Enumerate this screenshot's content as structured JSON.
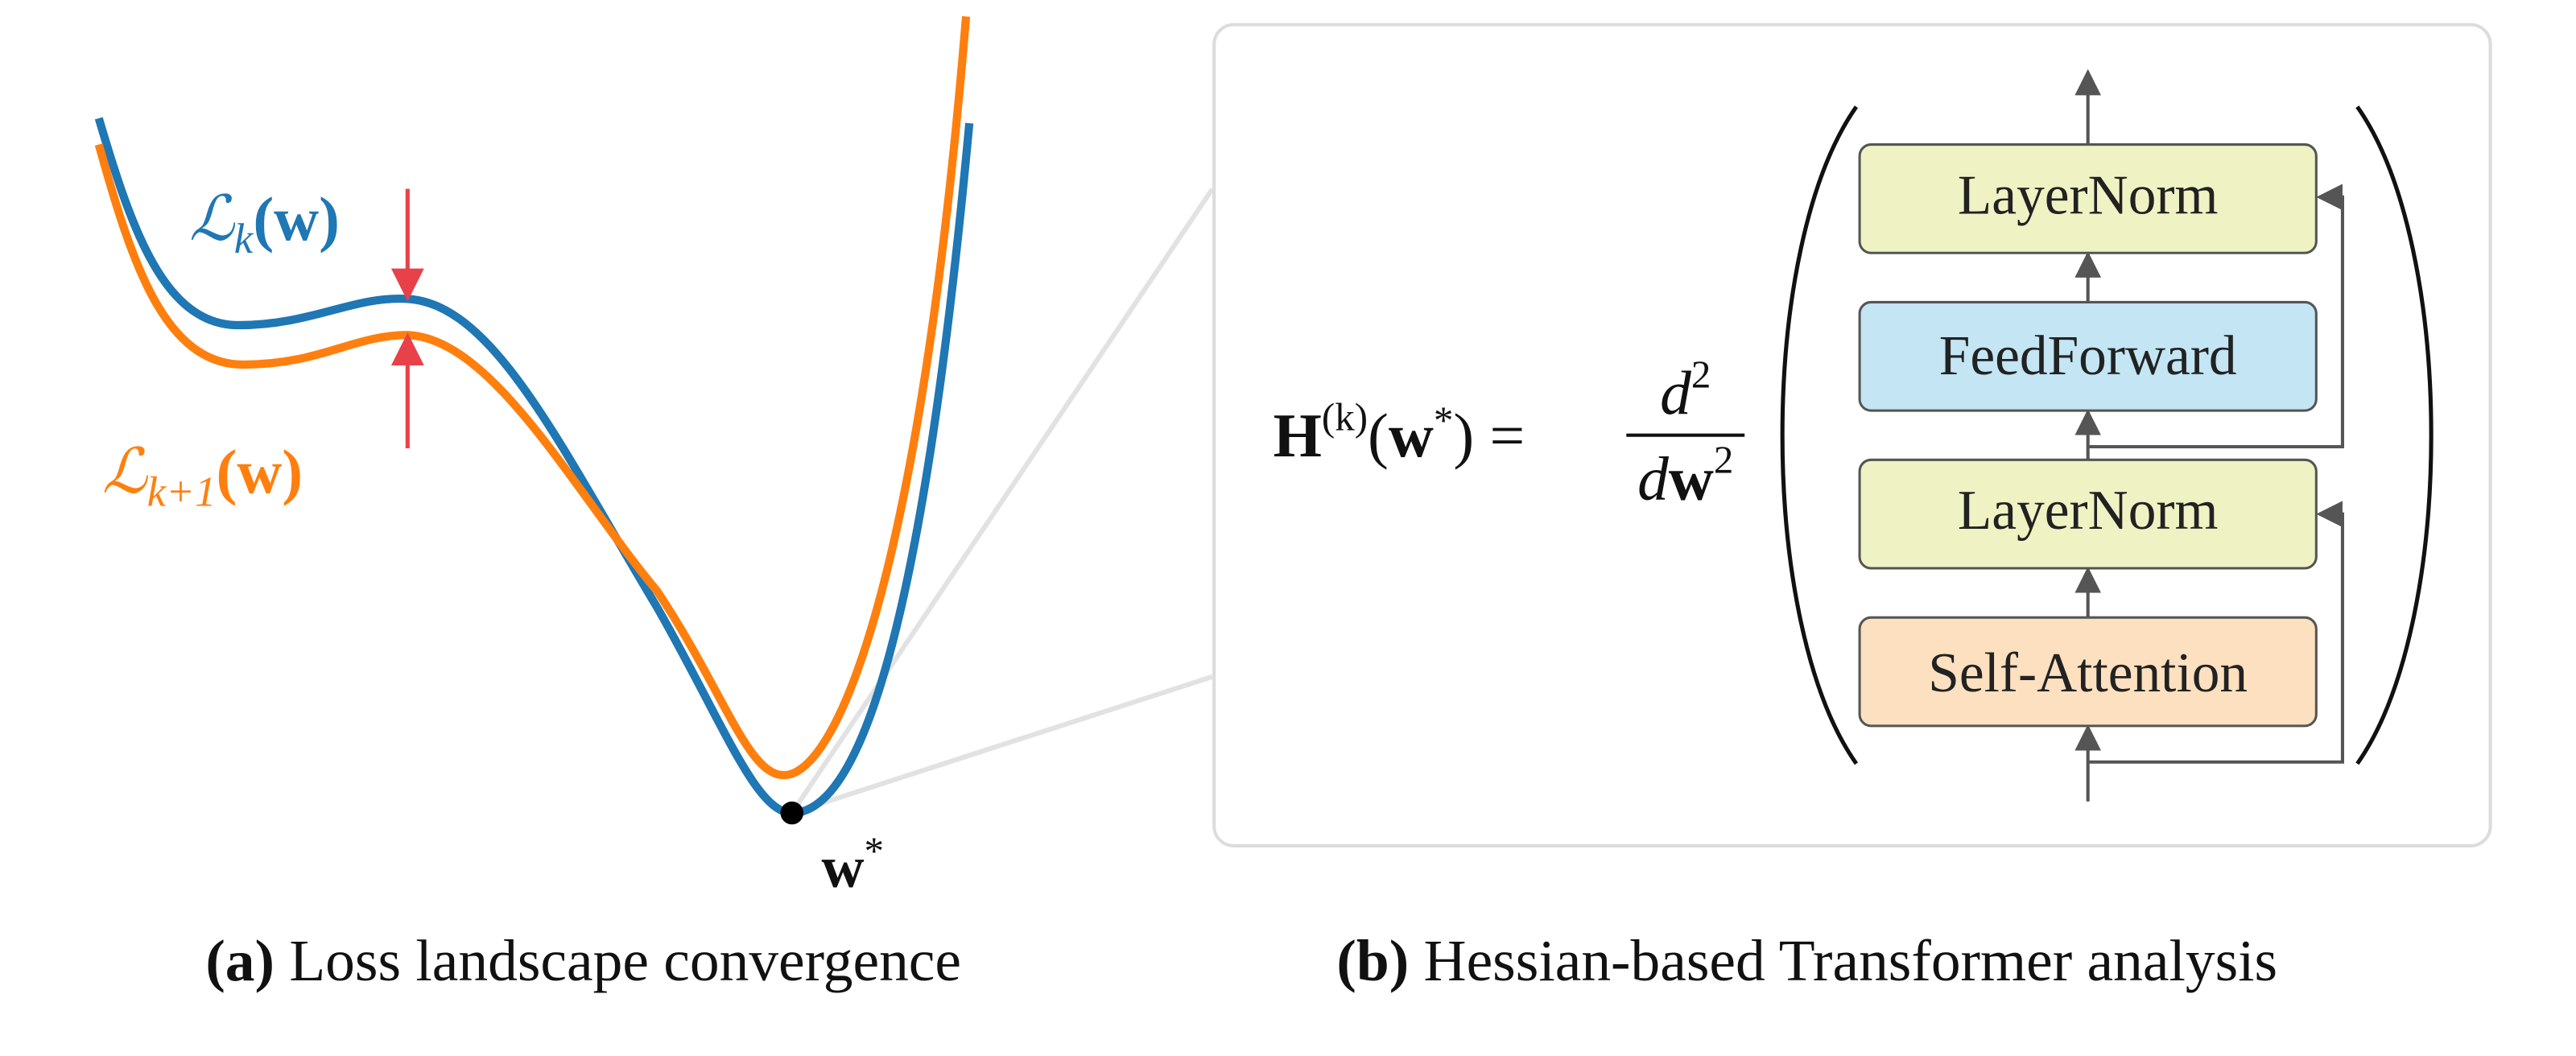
{
  "panel_a": {
    "label": "(a)",
    "caption": "Loss landscape convergence",
    "curve_k": {
      "symbol": "ℒ",
      "subscript": "k",
      "argument": "(w)"
    },
    "curve_k1": {
      "symbol": "ℒ",
      "subscript": "k+1",
      "argument": "(w)"
    },
    "minimum": {
      "symbol": "w",
      "superscript": "*"
    }
  },
  "panel_b": {
    "label": "(b)",
    "caption": "Hessian-based Transformer analysis",
    "equation": {
      "lhs_symbol": "H",
      "lhs_superscript": "(k)",
      "lhs_open": "(",
      "lhs_argument": "w",
      "lhs_argument_superscript": "*",
      "lhs_close": ")",
      "equals": "=",
      "numerator": "d",
      "numerator_power": "2",
      "denominator": "d",
      "denominator_var": "w",
      "denominator_power": "2"
    },
    "blocks": [
      "LayerNorm",
      "FeedForward",
      "LayerNorm",
      "Self-Attention"
    ]
  }
}
